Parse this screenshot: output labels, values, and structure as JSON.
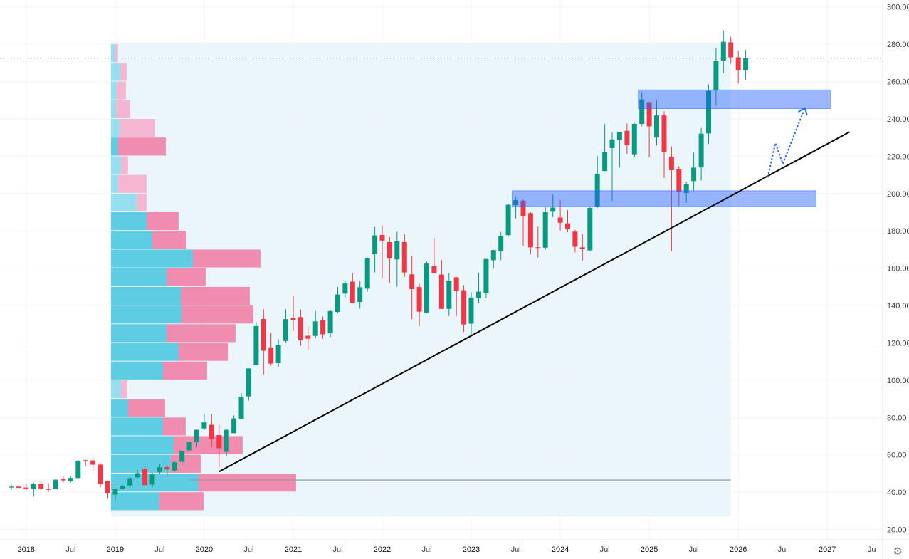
{
  "controls": {
    "gear_icon": "⚙"
  },
  "chart_data": {
    "type": "candlestick",
    "title": "",
    "x_axis": {
      "labels": [
        {
          "label": "2018",
          "month": "2018-01",
          "type": "year"
        },
        {
          "label": "Jul",
          "month": "2018-07",
          "type": "month"
        },
        {
          "label": "2019",
          "month": "2019-01",
          "type": "year"
        },
        {
          "label": "Jul",
          "month": "2019-07",
          "type": "month"
        },
        {
          "label": "2020",
          "month": "2020-01",
          "type": "year"
        },
        {
          "label": "Jul",
          "month": "2020-07",
          "type": "month"
        },
        {
          "label": "2021",
          "month": "2021-01",
          "type": "year"
        },
        {
          "label": "Jul",
          "month": "2021-07",
          "type": "month"
        },
        {
          "label": "2022",
          "month": "2022-01",
          "type": "year"
        },
        {
          "label": "Jul",
          "month": "2022-07",
          "type": "month"
        },
        {
          "label": "2023",
          "month": "2023-01",
          "type": "year"
        },
        {
          "label": "Jul",
          "month": "2023-07",
          "type": "month"
        },
        {
          "label": "2024",
          "month": "2024-01",
          "type": "year"
        },
        {
          "label": "Jul",
          "month": "2024-07",
          "type": "month"
        },
        {
          "label": "2025",
          "month": "2025-01",
          "type": "year"
        },
        {
          "label": "Jul",
          "month": "2025-07",
          "type": "month"
        },
        {
          "label": "2026",
          "month": "2026-01",
          "type": "year"
        },
        {
          "label": "Jul",
          "month": "2026-07",
          "type": "month"
        },
        {
          "label": "2027",
          "month": "2027-01",
          "type": "year"
        },
        {
          "label": "Ju",
          "month": "2027-07",
          "type": "month"
        }
      ]
    },
    "y_axis": {
      "ticks": [
        300,
        280,
        260,
        240,
        220,
        200,
        180,
        160,
        140,
        120,
        100,
        80,
        60,
        40,
        20
      ],
      "visible_range": [
        14.5,
        303.7
      ],
      "format_decimals": 2
    },
    "candles": [
      [
        "2017-11",
        42.5,
        44.1,
        41.3,
        43.0
      ],
      [
        "2017-12",
        43.0,
        44.3,
        41.6,
        42.3
      ],
      [
        "2018-01",
        42.5,
        45.0,
        41.2,
        41.9
      ],
      [
        "2018-02",
        41.8,
        45.2,
        37.6,
        44.5
      ],
      [
        "2018-03",
        44.6,
        45.9,
        41.2,
        41.9
      ],
      [
        "2018-04",
        41.7,
        44.7,
        40.2,
        41.3
      ],
      [
        "2018-05",
        41.6,
        47.1,
        41.3,
        46.7
      ],
      [
        "2018-06",
        47.0,
        48.5,
        45.2,
        46.3
      ],
      [
        "2018-07",
        45.9,
        48.4,
        45.3,
        47.6
      ],
      [
        "2018-08",
        47.6,
        57.2,
        47.3,
        56.9
      ],
      [
        "2018-09",
        57.1,
        57.4,
        53.8,
        56.4
      ],
      [
        "2018-10",
        57.0,
        58.4,
        51.5,
        54.7
      ],
      [
        "2018-11",
        54.8,
        55.6,
        42.6,
        44.6
      ],
      [
        "2018-12",
        46.1,
        46.2,
        36.6,
        39.4
      ],
      [
        "2019-01",
        38.7,
        42.2,
        35.5,
        41.6
      ],
      [
        "2019-02",
        41.7,
        43.9,
        41.5,
        43.3
      ],
      [
        "2019-03",
        43.6,
        47.9,
        42.4,
        47.5
      ],
      [
        "2019-04",
        47.9,
        52.1,
        47.1,
        50.2
      ],
      [
        "2019-05",
        52.5,
        53.8,
        44.0,
        43.8
      ],
      [
        "2019-06",
        44.1,
        50.4,
        42.6,
        49.5
      ],
      [
        "2019-07",
        50.8,
        55.3,
        49.6,
        53.3
      ],
      [
        "2019-08",
        53.5,
        54.5,
        48.1,
        52.2
      ],
      [
        "2019-09",
        51.6,
        56.6,
        51.1,
        56.0
      ],
      [
        "2019-10",
        56.3,
        62.4,
        53.8,
        62.2
      ],
      [
        "2019-11",
        62.4,
        67.0,
        62.3,
        66.8
      ],
      [
        "2019-12",
        66.8,
        73.5,
        64.1,
        73.4
      ],
      [
        "2020-01",
        74.1,
        81.9,
        73.2,
        77.4
      ],
      [
        "2020-02",
        76.1,
        81.8,
        64.1,
        68.3
      ],
      [
        "2020-03",
        70.6,
        76.0,
        53.2,
        63.6
      ],
      [
        "2020-04",
        61.6,
        73.6,
        59.2,
        73.4
      ],
      [
        "2020-05",
        71.6,
        81.1,
        71.5,
        79.5
      ],
      [
        "2020-06",
        79.4,
        93.1,
        79.3,
        91.2
      ],
      [
        "2020-07",
        91.3,
        106.4,
        89.1,
        106.3
      ],
      [
        "2020-08",
        108.2,
        131.0,
        107.9,
        129.0
      ],
      [
        "2020-09",
        132.8,
        138.0,
        103.1,
        115.8
      ],
      [
        "2020-10",
        117.6,
        125.4,
        107.7,
        108.9
      ],
      [
        "2020-11",
        109.1,
        122.0,
        107.3,
        119.0
      ],
      [
        "2020-12",
        121.0,
        138.0,
        120.0,
        132.7
      ],
      [
        "2021-01",
        133.5,
        145.1,
        126.4,
        132.0
      ],
      [
        "2021-02",
        133.8,
        137.9,
        118.4,
        121.3
      ],
      [
        "2021-03",
        123.8,
        128.7,
        116.2,
        122.2
      ],
      [
        "2021-04",
        123.7,
        137.1,
        122.5,
        131.5
      ],
      [
        "2021-05",
        132.0,
        134.1,
        122.2,
        124.6
      ],
      [
        "2021-06",
        125.1,
        137.4,
        123.1,
        137.0
      ],
      [
        "2021-07",
        136.6,
        150.0,
        135.8,
        145.9
      ],
      [
        "2021-08",
        146.4,
        153.5,
        144.5,
        151.8
      ],
      [
        "2021-09",
        152.8,
        157.3,
        141.3,
        141.5
      ],
      [
        "2021-10",
        141.9,
        153.2,
        138.3,
        149.8
      ],
      [
        "2021-11",
        149.0,
        165.7,
        147.5,
        165.3
      ],
      [
        "2021-12",
        167.5,
        182.1,
        157.8,
        177.6
      ],
      [
        "2022-01",
        177.8,
        182.9,
        154.7,
        174.8
      ],
      [
        "2022-02",
        174.0,
        176.7,
        152.0,
        165.1
      ],
      [
        "2022-03",
        164.7,
        179.6,
        150.1,
        174.6
      ],
      [
        "2022-04",
        174.0,
        178.5,
        155.4,
        157.7
      ],
      [
        "2022-05",
        156.7,
        166.5,
        132.6,
        148.8
      ],
      [
        "2022-06",
        149.9,
        151.7,
        129.0,
        136.7
      ],
      [
        "2022-07",
        136.0,
        163.6,
        135.7,
        162.5
      ],
      [
        "2022-08",
        161.0,
        176.2,
        157.1,
        157.2
      ],
      [
        "2022-09",
        156.6,
        164.3,
        138.0,
        138.2
      ],
      [
        "2022-10",
        138.2,
        157.5,
        134.4,
        153.3
      ],
      [
        "2022-11",
        155.1,
        155.5,
        134.4,
        148.0
      ],
      [
        "2022-12",
        148.2,
        150.9,
        125.9,
        129.9
      ],
      [
        "2023-01",
        130.3,
        147.2,
        124.2,
        144.3
      ],
      [
        "2023-02",
        144.0,
        157.4,
        141.3,
        147.4
      ],
      [
        "2023-03",
        146.8,
        165.0,
        143.9,
        164.9
      ],
      [
        "2023-04",
        164.3,
        169.9,
        159.8,
        169.7
      ],
      [
        "2023-05",
        169.3,
        179.4,
        164.3,
        177.3
      ],
      [
        "2023-06",
        177.7,
        194.5,
        176.9,
        194.0
      ],
      [
        "2023-07",
        193.8,
        198.2,
        186.6,
        196.5
      ],
      [
        "2023-08",
        196.2,
        196.7,
        172.0,
        187.9
      ],
      [
        "2023-09",
        189.5,
        190.0,
        167.6,
        171.2
      ],
      [
        "2023-10",
        171.2,
        182.3,
        165.7,
        170.8
      ],
      [
        "2023-11",
        171.0,
        192.9,
        170.1,
        190.0
      ],
      [
        "2023-12",
        190.3,
        199.6,
        187.4,
        192.5
      ],
      [
        "2024-01",
        187.1,
        196.4,
        180.2,
        184.4
      ],
      [
        "2024-02",
        184.0,
        191.1,
        179.3,
        180.8
      ],
      [
        "2024-03",
        179.6,
        180.5,
        168.5,
        171.5
      ],
      [
        "2024-04",
        171.2,
        178.4,
        164.1,
        170.3
      ],
      [
        "2024-05",
        169.6,
        193.0,
        169.1,
        192.3
      ],
      [
        "2024-06",
        192.9,
        220.2,
        192.2,
        210.6
      ],
      [
        "2024-07",
        212.1,
        237.2,
        211.9,
        222.1
      ],
      [
        "2024-08",
        224.4,
        232.9,
        196.0,
        229.0
      ],
      [
        "2024-09",
        228.6,
        233.1,
        213.9,
        233.0
      ],
      [
        "2024-10",
        233.6,
        237.5,
        221.3,
        225.9
      ],
      [
        "2024-11",
        221.0,
        237.8,
        219.7,
        237.3
      ],
      [
        "2024-12",
        237.3,
        254.3,
        236.0,
        250.4
      ],
      [
        "2025-01",
        248.9,
        249.1,
        219.4,
        236.0
      ],
      [
        "2025-02",
        230.0,
        250.0,
        225.7,
        241.8
      ],
      [
        "2025-03",
        241.8,
        244.0,
        208.4,
        222.1
      ],
      [
        "2025-04",
        219.8,
        225.2,
        169.2,
        212.5
      ],
      [
        "2025-05",
        212.9,
        214.6,
        193.3,
        200.9
      ],
      [
        "2025-06",
        200.3,
        206.2,
        195.1,
        205.2
      ],
      [
        "2025-07",
        206.7,
        222.0,
        201.5,
        213.9
      ],
      [
        "2025-08",
        214.0,
        235.1,
        207.0,
        232.1
      ],
      [
        "2025-09",
        232.2,
        258.5,
        226.6,
        255.0
      ],
      [
        "2025-10",
        255.2,
        278.0,
        247.0,
        271.0
      ],
      [
        "2025-11",
        271.2,
        287.5,
        264.5,
        281.3
      ],
      [
        "2025-12",
        281.0,
        284.0,
        269.5,
        273.0
      ],
      [
        "2026-01",
        273.0,
        276.5,
        259.0,
        266.0
      ],
      [
        "2026-02",
        266.0,
        277.0,
        261.0,
        272.5
      ]
    ],
    "volume_profile": {
      "anchor_month": "2019-01",
      "row_height_price": 10,
      "value_area_threshold": 75,
      "rows": [
        [
          280,
          6,
          4
        ],
        [
          270,
          13,
          9
        ],
        [
          260,
          8,
          13
        ],
        [
          250,
          7,
          20
        ],
        [
          240,
          12,
          50
        ],
        [
          230,
          10,
          67
        ],
        [
          220,
          14,
          10
        ],
        [
          210,
          10,
          40
        ],
        [
          200,
          36,
          14
        ],
        [
          190,
          50,
          45
        ],
        [
          180,
          58,
          48
        ],
        [
          170,
          115,
          95
        ],
        [
          160,
          78,
          55
        ],
        [
          150,
          98,
          97
        ],
        [
          140,
          99,
          101
        ],
        [
          130,
          78,
          97
        ],
        [
          120,
          95,
          70
        ],
        [
          110,
          73,
          62
        ],
        [
          100,
          14,
          9
        ],
        [
          90,
          24,
          52
        ],
        [
          80,
          73,
          32
        ],
        [
          70,
          88,
          97
        ],
        [
          60,
          84,
          42
        ],
        [
          50,
          123,
          137
        ],
        [
          40,
          68,
          62
        ]
      ]
    },
    "overlays": {
      "range_highlight": {
        "from": "2019-01",
        "to": "2025-12",
        "price_top": 281,
        "price_bottom": 27
      },
      "trendline": {
        "from": [
          "2020-03",
          51
        ],
        "to": [
          "2027-04",
          233
        ]
      },
      "horizontal_line": {
        "price": 46.5,
        "from": "2019-11",
        "to": "2025-12"
      },
      "price_line": {
        "price": 272.5
      },
      "zones": [
        {
          "name": "support-zone-200",
          "from": "2023-07",
          "to": "2026-11",
          "price_top": 201.5,
          "price_bottom": 193.0
        },
        {
          "name": "resistance-zone-250",
          "from": "2024-12",
          "to": "2027-01",
          "price_top": 255.5,
          "price_bottom": 245.5
        }
      ],
      "projection_arrow": {
        "points": [
          [
            "2026-05",
            209
          ],
          [
            "2026-06",
            227
          ],
          [
            "2026-07",
            216
          ],
          [
            "2026-10",
            246
          ]
        ]
      }
    },
    "colors": {
      "background": "#ffffff",
      "up": "#089981",
      "down": "#f23645",
      "grid": "#f0f3fa",
      "highlight": "rgba(132,202,230,0.16)",
      "profile_buy_strong": "rgba(69,196,222,0.85)",
      "profile_buy_light": "rgba(135,219,235,0.85)",
      "profile_sell_strong": "rgba(240,98,146,0.72)",
      "profile_sell_light": "rgba(247,166,199,0.8)",
      "zone_fill": "rgba(41,98,255,0.45)",
      "zone_border": "rgba(41,98,255,0.55)",
      "trendline": "#000000",
      "arrow": "#2962ff",
      "hline": "#9598a1",
      "priceline": "#9598a1",
      "axis_border": "#e0e3eb",
      "axis_text": "#3a3e48",
      "axis_text_strong": "#131722"
    }
  }
}
